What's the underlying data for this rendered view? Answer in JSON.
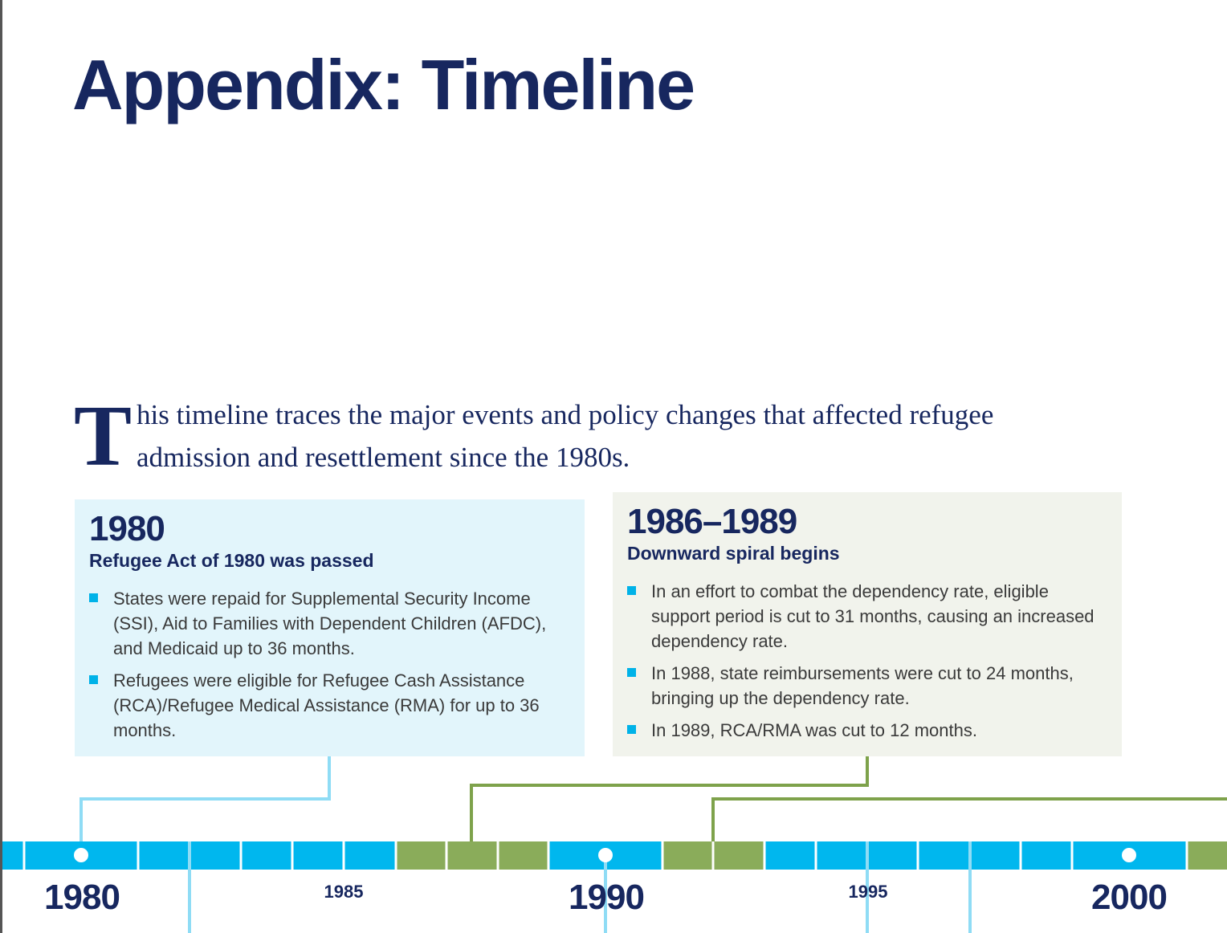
{
  "page_title": "Appendix: Timeline",
  "intro": {
    "drop_cap": "T",
    "text": "his timeline traces the major events and policy changes that affected refugee admission and resettlement since the 1980s."
  },
  "cards": [
    {
      "year": "1980",
      "subtitle": "Refugee Act of 1980 was passed",
      "bullets": [
        "States were repaid for Supplemental Security Income (SSI), Aid to Families with Dependent Children (AFDC), and Medicaid up to 36 months.",
        "Refugees were eligible for Refugee Cash Assistance (RCA)/Refugee Medical Assistance (RMA) for up to 36 months."
      ]
    },
    {
      "year": "1986–1989",
      "subtitle": "Downward spiral begins",
      "bullets": [
        "In an effort to combat the dependency rate, eligible support period is cut to 31 months, causing an increased dependency rate.",
        "In 1988, state reimbursements were cut to 24 months, bringing up the dependency rate.",
        "In 1989, RCA/RMA was cut to 12 months."
      ]
    }
  ],
  "timeline": {
    "year_labels": {
      "y1980": "1980",
      "y1985": "1985",
      "y1990": "1990",
      "y1995": "1995",
      "y2000": "2000"
    },
    "colors": {
      "blue_segment": "#00b7ee",
      "green_segment": "#8aac5a",
      "light_connector": "#8fdcf5",
      "green_connector": "#7ea24b"
    }
  }
}
